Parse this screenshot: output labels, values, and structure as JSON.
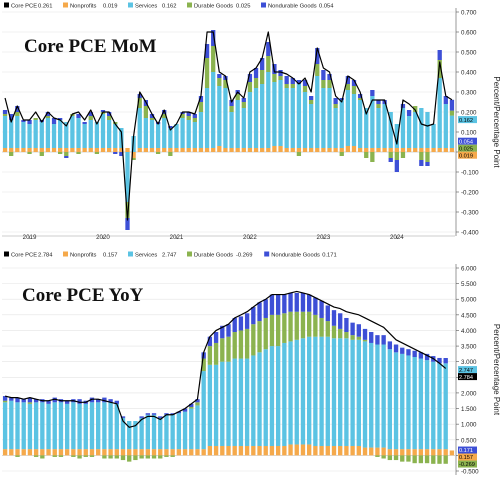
{
  "chart_data": [
    {
      "type": "bar",
      "stacked": true,
      "title": "Core PCE MoM",
      "ylabel": "Percent/Percentage Point",
      "ylim": [
        -0.4,
        0.7
      ],
      "yticks": [
        "0.700",
        "0.600",
        "0.500",
        "0.400",
        "0.300",
        "0.200",
        "0.100",
        "0.000",
        "-0.100",
        "-0.200",
        "-0.300",
        "-0.400"
      ],
      "xticks": [
        "2019",
        "2020",
        "2021",
        "2022",
        "2023",
        "2024"
      ],
      "x_start": "2018-09",
      "grid": true,
      "legend_position": "top",
      "legend": [
        {
          "name": "Core PCE",
          "value": "0.261",
          "color": "#000000"
        },
        {
          "name": "Nonprofits",
          "value": "0.019",
          "color": "#f5a94b"
        },
        {
          "name": "Services",
          "value": "0.162",
          "color": "#5bc3e3"
        },
        {
          "name": "Durable Goods",
          "value": "0.025",
          "color": "#8bb34f"
        },
        {
          "name": "Nondurable Goods",
          "value": "0.054",
          "color": "#3d4fd6"
        }
      ],
      "end_labels": [
        {
          "value": "0.054",
          "color": "#3d4fd6",
          "text_color": "#ffffff"
        },
        {
          "value": "0.025",
          "color": "#8bb34f",
          "text_color": "#000000"
        },
        {
          "value": "0.162",
          "color": "#5bc3e3",
          "text_color": "#000000"
        },
        {
          "value": "0.019",
          "color": "#f5a94b",
          "text_color": "#000000"
        }
      ],
      "series": [
        {
          "name": "Nonprofits",
          "color": "#f5a94b",
          "values": [
            0.02,
            0.02,
            0.02,
            0.02,
            0.02,
            0.02,
            0.02,
            0.02,
            0.02,
            0.02,
            0.02,
            0.02,
            0.02,
            0.02,
            0.02,
            0.02,
            0.02,
            0.02,
            0.02,
            0.02,
            0.02,
            -0.03,
            0.02,
            0.02,
            0.02,
            0.02,
            0.02,
            0.02,
            0.02,
            0.02,
            0.02,
            0.02,
            0.02,
            0.02,
            0.02,
            0.03,
            0.02,
            0.02,
            0.02,
            0.02,
            0.02,
            0.02,
            0.02,
            0.02,
            0.03,
            0.03,
            0.02,
            0.02,
            0.02,
            0.02,
            0.02,
            0.02,
            0.02,
            0.02,
            0.02,
            0.02,
            0.03,
            0.03,
            0.02,
            0.02,
            0.02,
            0.02,
            0.02,
            0.02,
            0.02,
            0.02,
            0.02,
            0.02,
            0.02,
            0.02,
            0.02,
            0.02,
            0.02,
            0.02
          ]
        },
        {
          "name": "Services",
          "color": "#5bc3e3",
          "values": [
            0.16,
            0.14,
            0.16,
            0.13,
            0.12,
            0.14,
            0.13,
            0.15,
            0.12,
            0.14,
            0.13,
            0.16,
            0.15,
            0.12,
            0.14,
            0.13,
            0.17,
            0.14,
            0.12,
            0.1,
            -0.25,
            0.08,
            0.2,
            0.15,
            0.14,
            0.12,
            0.15,
            0.1,
            0.12,
            0.15,
            0.14,
            0.13,
            0.18,
            0.3,
            0.38,
            0.3,
            0.3,
            0.18,
            0.24,
            0.2,
            0.28,
            0.3,
            0.32,
            0.38,
            0.32,
            0.33,
            0.3,
            0.3,
            0.32,
            0.28,
            0.22,
            0.36,
            0.3,
            0.3,
            0.2,
            0.24,
            0.28,
            0.26,
            0.24,
            0.2,
            0.26,
            0.2,
            0.22,
            0.18,
            0.12,
            0.2,
            0.16,
            0.18,
            0.2,
            0.18,
            0.12,
            0.35,
            0.22,
            0.162
          ]
        },
        {
          "name": "Durable Goods",
          "color": "#8bb34f",
          "values": [
            0.01,
            -0.02,
            0.02,
            0.0,
            -0.01,
            0.01,
            -0.02,
            0.01,
            0.0,
            -0.01,
            -0.02,
            0.01,
            -0.01,
            0.0,
            0.02,
            -0.01,
            0.01,
            0.02,
            0.01,
            0.0,
            -0.08,
            -0.01,
            0.05,
            0.06,
            0.01,
            -0.01,
            0.02,
            -0.02,
            0.0,
            0.02,
            0.02,
            0.02,
            0.05,
            0.15,
            0.13,
            0.04,
            0.04,
            0.03,
            0.03,
            0.03,
            0.05,
            0.05,
            0.07,
            0.08,
            0.04,
            0.02,
            0.02,
            0.02,
            -0.02,
            0.03,
            0.02,
            0.06,
            0.04,
            0.04,
            0.02,
            -0.02,
            0.03,
            0.04,
            0.01,
            -0.03,
            -0.05,
            0.02,
            0.0,
            -0.03,
            -0.04,
            -0.03,
            0.0,
            0.03,
            -0.04,
            -0.05,
            0.0,
            0.09,
            0.0,
            0.025
          ]
        },
        {
          "name": "Nondurable Goods",
          "color": "#3d4fd6",
          "values": [
            0.02,
            0.03,
            0.03,
            0.01,
            0.02,
            0.0,
            0.01,
            0.02,
            0.03,
            0.01,
            -0.01,
            0.0,
            0.02,
            0.01,
            0.02,
            0.0,
            0.01,
            0.02,
            -0.01,
            -0.02,
            -0.06,
            0.0,
            0.02,
            0.03,
            0.02,
            0.01,
            0.02,
            0.01,
            0.0,
            0.01,
            0.02,
            0.02,
            0.03,
            0.07,
            0.08,
            0.02,
            0.02,
            0.03,
            0.02,
            0.02,
            0.04,
            0.05,
            0.06,
            0.07,
            0.05,
            0.03,
            0.04,
            0.03,
            0.02,
            0.03,
            0.02,
            0.08,
            0.05,
            0.03,
            0.03,
            0.01,
            0.04,
            0.03,
            0.02,
            0.0,
            0.03,
            0.02,
            0.02,
            -0.02,
            -0.06,
            0.02,
            0.03,
            0.0,
            -0.03,
            -0.02,
            0.0,
            0.05,
            0.04,
            0.054
          ]
        },
        {
          "name": "Core PCE",
          "color": "#000000",
          "type": "line",
          "values": [
            0.27,
            0.15,
            0.23,
            0.16,
            0.16,
            0.2,
            0.15,
            0.2,
            0.17,
            0.16,
            0.13,
            0.19,
            0.2,
            0.16,
            0.21,
            0.14,
            0.2,
            0.2,
            0.14,
            0.1,
            -0.34,
            0.08,
            0.3,
            0.25,
            0.19,
            0.14,
            0.21,
            0.11,
            0.14,
            0.2,
            0.2,
            0.19,
            0.28,
            0.6,
            0.6,
            0.4,
            0.38,
            0.25,
            0.3,
            0.27,
            0.4,
            0.42,
            0.47,
            0.6,
            0.4,
            0.4,
            0.39,
            0.37,
            0.34,
            0.37,
            0.3,
            0.52,
            0.42,
            0.4,
            0.28,
            0.25,
            0.38,
            0.36,
            0.3,
            0.19,
            0.26,
            0.26,
            0.26,
            0.15,
            0.04,
            0.26,
            0.24,
            0.21,
            0.14,
            0.13,
            0.14,
            0.45,
            0.28,
            0.261
          ]
        }
      ]
    },
    {
      "type": "bar",
      "stacked": true,
      "title": "Core PCE YoY",
      "ylabel": "Percent/Percentage Point",
      "ylim": [
        -0.5,
        6.0
      ],
      "yticks": [
        "6.000",
        "5.500",
        "5.000",
        "4.500",
        "4.000",
        "3.500",
        "3.000",
        "2.500",
        "2.000",
        "1.500",
        "1.000",
        "0.500",
        "0.000",
        "-0.500"
      ],
      "legend_position": "top",
      "legend": [
        {
          "name": "Core PCE",
          "value": "2.784",
          "color": "#000000"
        },
        {
          "name": "Nonprofits",
          "value": "0.157",
          "color": "#f5a94b"
        },
        {
          "name": "Services",
          "value": "2.747",
          "color": "#5bc3e3"
        },
        {
          "name": "Durable Goods",
          "value": "-0.269",
          "color": "#8bb34f"
        },
        {
          "name": "Nondurable Goods",
          "value": "0.171",
          "color": "#3d4fd6"
        }
      ],
      "end_labels": [
        {
          "value": "0.171",
          "color": "#3d4fd6",
          "text_color": "#ffffff"
        },
        {
          "value": "2.747",
          "color": "#5bc3e3",
          "text_color": "#000000"
        },
        {
          "value": "2.784",
          "color": "#000000",
          "text_color": "#ffffff"
        },
        {
          "value": "0.157",
          "color": "#f5a94b",
          "text_color": "#000000"
        },
        {
          "value": "-0.269",
          "color": "#8bb34f",
          "text_color": "#000000"
        }
      ],
      "series": [
        {
          "name": "Nonprofits",
          "color": "#f5a94b",
          "values": [
            0.2,
            0.2,
            0.2,
            0.2,
            0.2,
            0.2,
            0.2,
            0.2,
            0.2,
            0.2,
            0.2,
            0.2,
            0.2,
            0.2,
            0.2,
            0.2,
            0.2,
            0.2,
            0.2,
            0.2,
            0.2,
            0.2,
            0.2,
            0.2,
            0.2,
            0.2,
            0.2,
            0.2,
            0.2,
            0.2,
            0.2,
            0.2,
            0.2,
            0.3,
            0.3,
            0.3,
            0.3,
            0.3,
            0.3,
            0.3,
            0.3,
            0.3,
            0.3,
            0.3,
            0.3,
            0.3,
            0.35,
            0.35,
            0.35,
            0.35,
            0.3,
            0.3,
            0.3,
            0.3,
            0.3,
            0.3,
            0.3,
            0.3,
            0.25,
            0.25,
            0.25,
            0.25,
            0.2,
            0.2,
            0.2,
            0.2,
            0.2,
            0.2,
            0.2,
            0.2,
            0.2,
            0.2,
            0.157
          ]
        },
        {
          "name": "Services",
          "color": "#5bc3e3",
          "values": [
            1.5,
            1.55,
            1.5,
            1.5,
            1.45,
            1.5,
            1.5,
            1.45,
            1.5,
            1.5,
            1.45,
            1.5,
            1.45,
            1.45,
            1.5,
            1.5,
            1.5,
            1.5,
            1.45,
            1.0,
            0.9,
            0.9,
            1.0,
            1.1,
            1.1,
            1.0,
            1.1,
            1.1,
            1.15,
            1.2,
            1.3,
            1.4,
            2.5,
            2.6,
            2.6,
            2.7,
            2.7,
            2.8,
            2.8,
            2.8,
            2.9,
            3.0,
            3.1,
            3.2,
            3.2,
            3.3,
            3.3,
            3.35,
            3.4,
            3.45,
            3.5,
            3.5,
            3.5,
            3.45,
            3.45,
            3.45,
            3.4,
            3.4,
            3.4,
            3.35,
            3.3,
            3.3,
            3.2,
            3.1,
            3.05,
            3.0,
            2.95,
            2.9,
            2.85,
            2.8,
            2.75,
            2.747
          ]
        },
        {
          "name": "Durable Goods",
          "color": "#8bb34f",
          "values": [
            0.05,
            0.0,
            -0.05,
            0.0,
            0.05,
            -0.05,
            -0.1,
            0.0,
            -0.05,
            -0.05,
            0.0,
            -0.05,
            -0.1,
            -0.05,
            -0.05,
            0.0,
            -0.1,
            -0.1,
            -0.1,
            -0.15,
            -0.2,
            -0.15,
            -0.1,
            -0.1,
            -0.1,
            -0.1,
            -0.05,
            -0.05,
            0.0,
            0.0,
            0.05,
            0.1,
            0.4,
            0.6,
            0.7,
            0.75,
            0.8,
            0.85,
            0.9,
            0.95,
            1.0,
            1.0,
            1.0,
            1.0,
            1.0,
            0.95,
            0.95,
            0.9,
            0.85,
            0.8,
            0.7,
            0.6,
            0.5,
            0.4,
            0.3,
            0.2,
            0.15,
            0.1,
            0.05,
            0.0,
            -0.05,
            -0.1,
            -0.15,
            -0.15,
            -0.2,
            -0.2,
            -0.25,
            -0.25,
            -0.25,
            -0.27,
            -0.27,
            -0.269
          ]
        },
        {
          "name": "Nondurable Goods",
          "color": "#3d4fd6",
          "values": [
            0.15,
            0.1,
            0.15,
            0.1,
            0.15,
            0.1,
            0.1,
            0.1,
            0.15,
            0.1,
            0.1,
            0.1,
            0.15,
            0.1,
            0.15,
            0.1,
            0.15,
            0.1,
            0.1,
            0.05,
            0.0,
            0.0,
            0.05,
            0.05,
            0.05,
            0.05,
            0.05,
            0.05,
            0.05,
            0.1,
            0.1,
            0.1,
            0.2,
            0.3,
            0.35,
            0.4,
            0.4,
            0.45,
            0.45,
            0.5,
            0.55,
            0.6,
            0.6,
            0.65,
            0.65,
            0.6,
            0.6,
            0.6,
            0.6,
            0.55,
            0.55,
            0.55,
            0.5,
            0.5,
            0.5,
            0.45,
            0.4,
            0.4,
            0.35,
            0.35,
            0.3,
            0.3,
            0.25,
            0.25,
            0.2,
            0.2,
            0.2,
            0.2,
            0.2,
            0.18,
            0.17,
            0.171
          ]
        },
        {
          "name": "Core PCE",
          "color": "#000000",
          "type": "line",
          "values": [
            1.9,
            1.85,
            1.85,
            1.8,
            1.85,
            1.8,
            1.75,
            1.75,
            1.8,
            1.75,
            1.75,
            1.75,
            1.7,
            1.7,
            1.8,
            1.8,
            1.75,
            1.7,
            1.65,
            1.1,
            0.9,
            0.95,
            1.15,
            1.25,
            1.25,
            1.15,
            1.3,
            1.3,
            1.4,
            1.5,
            1.65,
            1.8,
            3.3,
            3.8,
            4.0,
            4.1,
            4.2,
            4.4,
            4.5,
            4.6,
            4.75,
            4.9,
            5.0,
            5.15,
            5.15,
            5.15,
            5.2,
            5.25,
            5.2,
            5.15,
            5.05,
            4.95,
            4.85,
            4.75,
            4.7,
            4.6,
            4.55,
            4.5,
            4.4,
            4.3,
            4.2,
            4.1,
            3.9,
            3.7,
            3.6,
            3.5,
            3.4,
            3.3,
            3.2,
            3.1,
            2.95,
            2.784
          ]
        }
      ]
    }
  ]
}
